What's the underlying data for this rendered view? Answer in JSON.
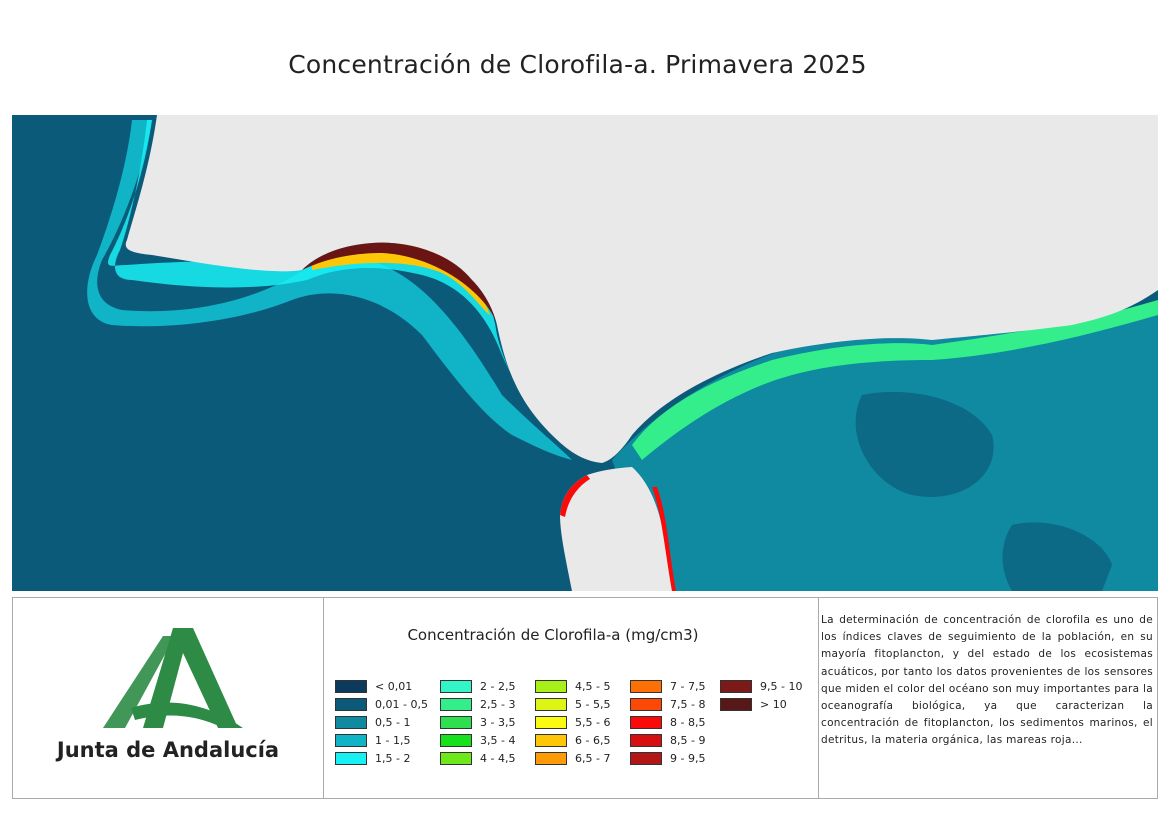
{
  "title": "Concentración de Clorofila-a. Primavera 2025",
  "map": {
    "colors": {
      "land": "#e9e9e9",
      "open_ocean": "#0c5a7a",
      "shelf": "#0f8fa3",
      "coastal": "#10b8c8"
    }
  },
  "brand": {
    "name": "Junta de Andalucía",
    "logo_color": "#2e8b45"
  },
  "legend": {
    "title": "Concentración de Clorofila-a (mg/cm3)",
    "items": [
      {
        "label": "< 0,01",
        "color": "#0b3a5c"
      },
      {
        "label": "0,01 - 0,5",
        "color": "#0c5a7a"
      },
      {
        "label": "0,5 - 1",
        "color": "#0f8aa0"
      },
      {
        "label": "1 - 1,5",
        "color": "#10b4c6"
      },
      {
        "label": "1,5 - 2",
        "color": "#19f0f4"
      },
      {
        "label": "2 - 2,5",
        "color": "#33f5c8"
      },
      {
        "label": "2,5 - 3",
        "color": "#33ee8a"
      },
      {
        "label": "3 - 3,5",
        "color": "#2ee050"
      },
      {
        "label": "3,5 - 4",
        "color": "#17e01f"
      },
      {
        "label": "4 - 4,5",
        "color": "#6ee81a"
      },
      {
        "label": "4,5 - 5",
        "color": "#a8f01a"
      },
      {
        "label": "5 - 5,5",
        "color": "#dcf514"
      },
      {
        "label": "5,5 - 6",
        "color": "#fbfb12"
      },
      {
        "label": "6 - 6,5",
        "color": "#fdc708"
      },
      {
        "label": "6,5 - 7",
        "color": "#fd9a08"
      },
      {
        "label": "7 - 7,5",
        "color": "#fd7006"
      },
      {
        "label": "7,5 - 8",
        "color": "#fd4906"
      },
      {
        "label": "8 - 8,5",
        "color": "#fb0a0a"
      },
      {
        "label": "8,5 - 9",
        "color": "#d61010"
      },
      {
        "label": "9 - 9,5",
        "color": "#b31616"
      },
      {
        "label": "9,5 - 10",
        "color": "#7c1a1a"
      },
      {
        "label": "> 10",
        "color": "#581818"
      }
    ]
  },
  "description": "La determinación de concentración de clorofila es uno de los índices claves de seguimiento de la población, en su mayoría fitoplancton, y del estado de los ecosistemas acuáticos, por tanto los datos provenientes de los sensores que miden el color del océano son muy importantes para la oceanografía biológica, ya que caracterizan la concentración de fitoplancton, los sedimentos marinos, el detritus, la materia orgánica, las mareas roja..."
}
